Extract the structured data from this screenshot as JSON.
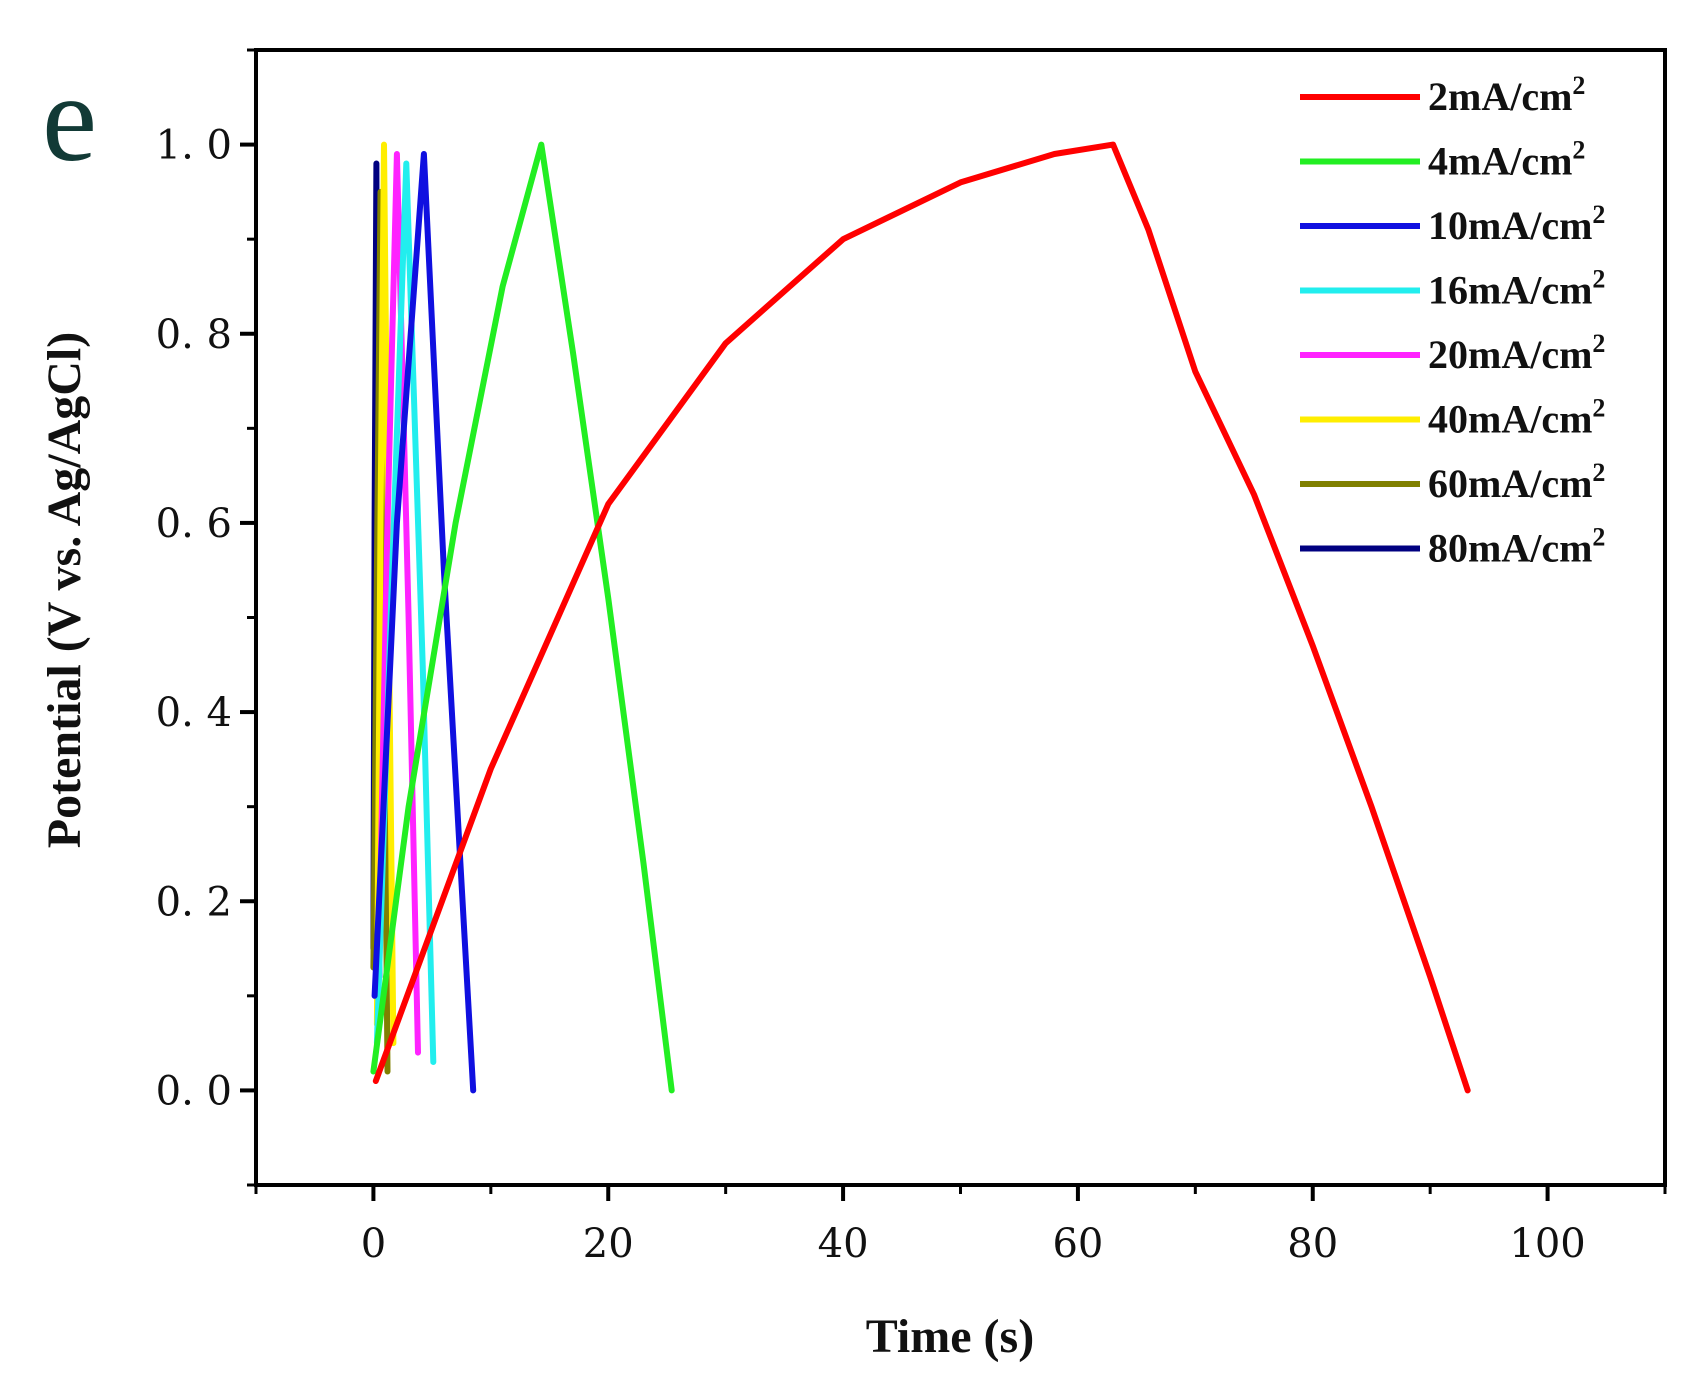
{
  "panel_label": "e",
  "chart_data": {
    "type": "line",
    "title": "",
    "xlabel": "Time (s)",
    "ylabel": "Potential (V vs. Ag/AgCl)",
    "xlim": [
      -10,
      110
    ],
    "ylim": [
      -0.1,
      1.1
    ],
    "xticks": [
      0,
      20,
      40,
      60,
      80,
      100
    ],
    "yticks": [
      0.0,
      0.2,
      0.4,
      0.6,
      0.8,
      1.0
    ],
    "xtick_labels": [
      "0",
      "20",
      "40",
      "60",
      "80",
      "100"
    ],
    "ytick_labels": [
      "0. 0",
      "0. 2",
      "0. 4",
      "0. 6",
      "0. 8",
      "1. 0"
    ],
    "legend_position": "top-right",
    "series": [
      {
        "name": "2mA/cm",
        "sup": "2",
        "color": "#ff0000",
        "x": [
          0.2,
          10,
          20,
          30,
          40,
          50,
          58,
          63,
          66,
          70,
          75,
          80,
          85,
          90,
          93.2
        ],
        "y": [
          0.01,
          0.34,
          0.62,
          0.79,
          0.9,
          0.96,
          0.99,
          1.0,
          0.91,
          0.76,
          0.63,
          0.47,
          0.3,
          0.12,
          0.0
        ]
      },
      {
        "name": "4mA/cm",
        "sup": "2",
        "color": "#22ee22",
        "x": [
          0,
          3,
          7,
          11,
          14.3,
          17,
          20,
          23,
          25.4
        ],
        "y": [
          0.02,
          0.3,
          0.6,
          0.85,
          1.0,
          0.78,
          0.52,
          0.24,
          0.0
        ]
      },
      {
        "name": "10mA/cm",
        "sup": "2",
        "color": "#1010e0",
        "x": [
          0.1,
          2,
          4.3,
          6,
          8.5
        ],
        "y": [
          0.1,
          0.6,
          0.99,
          0.55,
          0.0
        ]
      },
      {
        "name": "16mA/cm",
        "sup": "2",
        "color": "#22eeee",
        "x": [
          0.3,
          1.6,
          2.8,
          4.2,
          5.1
        ],
        "y": [
          0.05,
          0.55,
          0.98,
          0.45,
          0.03
        ]
      },
      {
        "name": "20mA/cm",
        "sup": "2",
        "color": "#ff22ff",
        "x": [
          0.4,
          1.2,
          2.0,
          3.0,
          3.8
        ],
        "y": [
          0.1,
          0.6,
          0.99,
          0.5,
          0.04
        ]
      },
      {
        "name": "40mA/cm",
        "sup": "2",
        "color": "#ffee00",
        "x": [
          0.3,
          0.6,
          0.9,
          1.3,
          1.7
        ],
        "y": [
          0.07,
          0.6,
          1.0,
          0.5,
          0.05
        ]
      },
      {
        "name": "60mA/cm",
        "sup": "2",
        "color": "#808000",
        "x": [
          0.0,
          0.3,
          0.6,
          0.9,
          1.2
        ],
        "y": [
          0.13,
          0.55,
          0.95,
          0.45,
          0.02
        ]
      },
      {
        "name": "80mA/cm",
        "sup": "2",
        "color": "#000080",
        "x": [
          0.0,
          0.1,
          0.25,
          0.35,
          0.5
        ],
        "y": [
          0.15,
          0.6,
          0.98,
          0.55,
          0.12
        ]
      }
    ]
  }
}
